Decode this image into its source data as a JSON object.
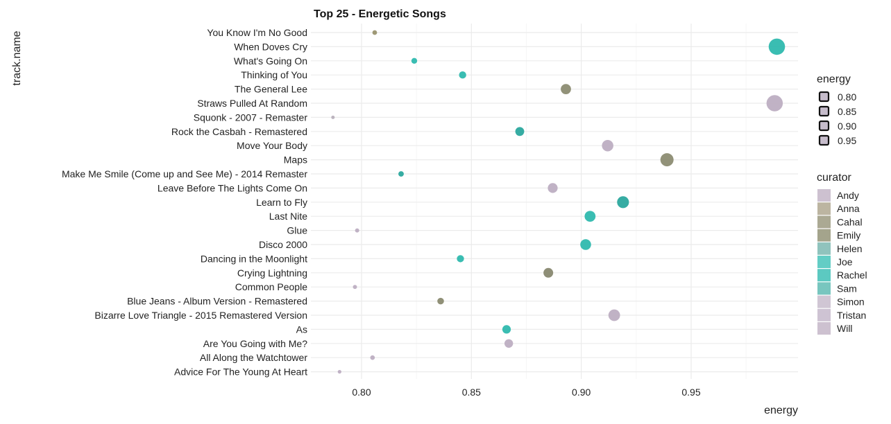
{
  "chart_data": {
    "type": "scatter",
    "title": "Top 25 - Energetic Songs",
    "xlabel": "energy",
    "ylabel": "track.name",
    "xlim": [
      0.78,
      1.0
    ],
    "x_ticks": [
      0.8,
      0.85,
      0.9,
      0.95
    ],
    "x_tick_labels": [
      "0.80",
      "0.85",
      "0.90",
      "0.95"
    ],
    "grid": true,
    "tracks": [
      "You Know I'm No Good",
      "When Doves Cry",
      "What's Going On",
      "Thinking of You",
      "The General Lee",
      "Straws Pulled At Random",
      "Squonk - 2007 - Remaster",
      "Rock the Casbah - Remastered",
      "Move Your Body",
      "Maps",
      "Make Me Smile (Come up and See Me) - 2014 Remaster",
      "Leave Before The Lights Come On",
      "Learn to Fly",
      "Last Nite",
      "Glue",
      "Disco 2000",
      "Dancing in the Moonlight",
      "Crying Lightning",
      "Common People",
      "Blue Jeans - Album Version - Remastered",
      "Bizarre Love Triangle - 2015 Remastered Version",
      "As",
      "Are You Going with Me?",
      "All Along the Watchtower",
      "Advice For The Young At Heart"
    ],
    "points": [
      {
        "track": "You Know I'm No Good",
        "energy": 0.806,
        "color": "#9a9470"
      },
      {
        "track": "When Doves Cry",
        "energy": 0.989,
        "color": "#2fb9ae"
      },
      {
        "track": "What's Going On",
        "energy": 0.824,
        "color": "#2fb9ae"
      },
      {
        "track": "Thinking of You",
        "energy": 0.846,
        "color": "#2fb9ae"
      },
      {
        "track": "The General Lee",
        "energy": 0.893,
        "color": "#8c8c72"
      },
      {
        "track": "Straws Pulled At Random",
        "energy": 0.988,
        "color": "#bdaec2"
      },
      {
        "track": "Squonk - 2007 - Remaster",
        "energy": 0.787,
        "color": "#b8b0bc"
      },
      {
        "track": "Rock the Casbah - Remastered",
        "energy": 0.872,
        "color": "#2ba89e"
      },
      {
        "track": "Move Your Body",
        "energy": 0.912,
        "color": "#bdaec2"
      },
      {
        "track": "Maps",
        "energy": 0.939,
        "color": "#8c8c72"
      },
      {
        "track": "Make Me Smile (Come up and See Me) - 2014 Remaster",
        "energy": 0.818,
        "color": "#2ba89e"
      },
      {
        "track": "Leave Before The Lights Come On",
        "energy": 0.887,
        "color": "#bdaec2"
      },
      {
        "track": "Learn to Fly",
        "energy": 0.919,
        "color": "#2ba89e"
      },
      {
        "track": "Last Nite",
        "energy": 0.904,
        "color": "#2fb9ae"
      },
      {
        "track": "Glue",
        "energy": 0.798,
        "color": "#bdaec2"
      },
      {
        "track": "Disco 2000",
        "energy": 0.902,
        "color": "#2fb9ae"
      },
      {
        "track": "Dancing in the Moonlight",
        "energy": 0.845,
        "color": "#2fb9ae"
      },
      {
        "track": "Crying Lightning",
        "energy": 0.885,
        "color": "#888870"
      },
      {
        "track": "Common People",
        "energy": 0.797,
        "color": "#bdaec2"
      },
      {
        "track": "Blue Jeans - Album Version - Remastered",
        "energy": 0.836,
        "color": "#8a8a70"
      },
      {
        "track": "Bizarre Love Triangle - 2015 Remastered Version",
        "energy": 0.915,
        "color": "#bdaec2"
      },
      {
        "track": "As",
        "energy": 0.866,
        "color": "#2fb9ae"
      },
      {
        "track": "Are You Going with Me?",
        "energy": 0.867,
        "color": "#bdaec2"
      },
      {
        "track": "All Along the Watchtower",
        "energy": 0.805,
        "color": "#bdaec2"
      },
      {
        "track": "Advice For The Young At Heart",
        "energy": 0.79,
        "color": "#bdaec2"
      }
    ],
    "legend_energy": {
      "title": "energy",
      "items": [
        {
          "label": "0.80",
          "value": 0.8
        },
        {
          "label": "0.85",
          "value": 0.85
        },
        {
          "label": "0.90",
          "value": 0.9
        },
        {
          "label": "0.95",
          "value": 0.95
        }
      ]
    },
    "legend_curator": {
      "title": "curator",
      "items": [
        {
          "label": "Andy",
          "color": "#c4b6c8"
        },
        {
          "label": "Anna",
          "color": "#b0a890"
        },
        {
          "label": "Cahal",
          "color": "#9c9a80"
        },
        {
          "label": "Emily",
          "color": "#949478"
        },
        {
          "label": "Helen",
          "color": "#7cb8b2"
        },
        {
          "label": "Joe",
          "color": "#48c4bb"
        },
        {
          "label": "Rachel",
          "color": "#40bfb6"
        },
        {
          "label": "Sam",
          "color": "#60bcb4"
        },
        {
          "label": "Simon",
          "color": "#c8bccd"
        },
        {
          "label": "Tristan",
          "color": "#c6b9cb"
        },
        {
          "label": "Will",
          "color": "#c4b6c8"
        }
      ]
    },
    "legend_placement": "right"
  }
}
